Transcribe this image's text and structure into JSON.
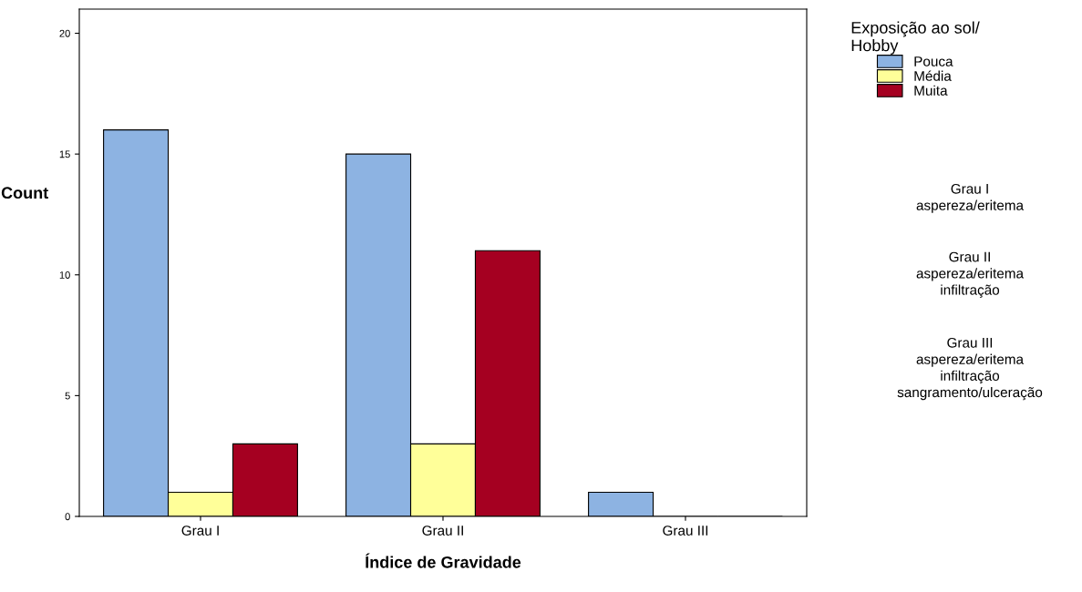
{
  "chart_data": {
    "type": "bar",
    "xlabel": "Índice de Gravidade",
    "ylabel": "Count",
    "legend_title": "Exposição ao sol/\nHobby",
    "categories": [
      "Grau I",
      "Grau II",
      "Grau III"
    ],
    "series": [
      {
        "name": "Pouca",
        "color": "#8db3e2",
        "values": [
          16,
          15,
          1
        ]
      },
      {
        "name": "Média",
        "color": "#ffff99",
        "values": [
          1,
          3,
          0
        ]
      },
      {
        "name": "Muita",
        "color": "#a50021",
        "values": [
          3,
          11,
          0
        ]
      }
    ],
    "ylim": [
      0,
      21
    ],
    "yticks": [
      0,
      5,
      10,
      15,
      20
    ],
    "grid": false,
    "legend": "right",
    "annotations": [
      "Grau I\naspereza/eritema",
      "Grau II\naspereza/eritema\ninfiltração",
      "Grau III\naspereza/eritema\ninfiltração\nsangramento/ulceração"
    ]
  }
}
